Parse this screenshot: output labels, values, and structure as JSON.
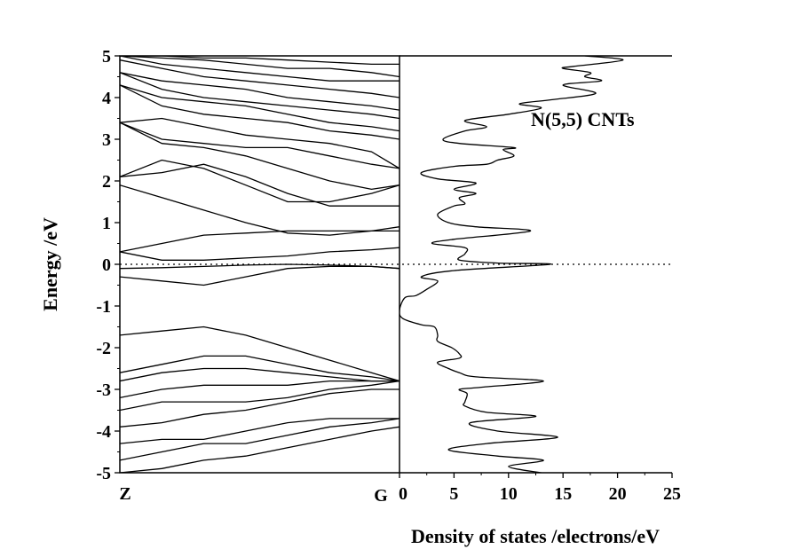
{
  "chart_data": [
    {
      "type": "line",
      "name": "band-structure",
      "ylabel": "Energy /eV",
      "ylim": [
        -5,
        5
      ],
      "y_ticks": [
        "5",
        "4",
        "3",
        "2",
        "1",
        "0",
        "-1",
        "-2",
        "-3",
        "-4",
        "-5"
      ],
      "x_ticks": [
        "Z",
        "G"
      ],
      "fermi_level": 0,
      "k_points": [
        0,
        0.15,
        0.3,
        0.45,
        0.6,
        0.75,
        0.9,
        1.0
      ],
      "bands": [
        [
          -5.0,
          -4.9,
          -4.7,
          -4.6,
          -4.4,
          -4.2,
          -4.0,
          -3.9
        ],
        [
          -4.7,
          -4.5,
          -4.3,
          -4.3,
          -4.1,
          -3.9,
          -3.8,
          -3.7
        ],
        [
          -4.3,
          -4.2,
          -4.2,
          -4.0,
          -3.8,
          -3.7,
          -3.7,
          -3.7
        ],
        [
          -3.9,
          -3.8,
          -3.6,
          -3.5,
          -3.3,
          -3.1,
          -3.0,
          -3.0
        ],
        [
          -3.5,
          -3.3,
          -3.3,
          -3.3,
          -3.2,
          -3.0,
          -2.9,
          -2.8
        ],
        [
          -3.2,
          -3.0,
          -2.9,
          -2.9,
          -2.9,
          -2.8,
          -2.8,
          -2.8
        ],
        [
          -2.8,
          -2.6,
          -2.5,
          -2.5,
          -2.6,
          -2.7,
          -2.8,
          -2.8
        ],
        [
          -2.6,
          -2.4,
          -2.2,
          -2.2,
          -2.4,
          -2.6,
          -2.7,
          -2.8
        ],
        [
          -1.7,
          -1.6,
          -1.5,
          -1.7,
          -2.0,
          -2.3,
          -2.6,
          -2.8
        ],
        [
          -0.3,
          -0.4,
          -0.5,
          -0.3,
          -0.1,
          -0.05,
          -0.05,
          -0.1
        ],
        [
          -0.1,
          -0.08,
          -0.05,
          -0.02,
          0.0,
          -0.02,
          -0.05,
          -0.1
        ],
        [
          0.3,
          0.1,
          0.1,
          0.15,
          0.2,
          0.3,
          0.35,
          0.4
        ],
        [
          0.3,
          0.5,
          0.7,
          0.75,
          0.8,
          0.8,
          0.8,
          0.8
        ],
        [
          1.9,
          1.6,
          1.3,
          1.0,
          0.75,
          0.7,
          0.8,
          0.9
        ],
        [
          2.1,
          2.2,
          2.4,
          2.1,
          1.7,
          1.4,
          1.4,
          1.4
        ],
        [
          2.1,
          2.5,
          2.3,
          1.9,
          1.5,
          1.5,
          1.7,
          1.9
        ],
        [
          3.4,
          2.9,
          2.8,
          2.6,
          2.3,
          2.0,
          1.8,
          1.9
        ],
        [
          3.4,
          3.0,
          2.9,
          2.8,
          2.8,
          2.6,
          2.4,
          2.3
        ],
        [
          3.4,
          3.5,
          3.3,
          3.1,
          3.0,
          2.9,
          2.7,
          2.3
        ],
        [
          4.3,
          3.8,
          3.6,
          3.5,
          3.4,
          3.2,
          3.1,
          3.0
        ],
        [
          4.3,
          4.0,
          3.9,
          3.8,
          3.6,
          3.4,
          3.3,
          3.2
        ],
        [
          4.6,
          4.2,
          4.0,
          3.9,
          3.8,
          3.7,
          3.6,
          3.5
        ],
        [
          4.6,
          4.4,
          4.3,
          4.2,
          4.0,
          3.9,
          3.8,
          3.7
        ],
        [
          4.9,
          4.7,
          4.5,
          4.4,
          4.3,
          4.2,
          4.1,
          4.0
        ],
        [
          5.0,
          4.8,
          4.7,
          4.6,
          4.5,
          4.4,
          4.4,
          4.4
        ],
        [
          5.0,
          4.95,
          4.9,
          4.8,
          4.7,
          4.7,
          4.6,
          4.5
        ],
        [
          5.0,
          5.0,
          4.95,
          4.95,
          4.9,
          4.85,
          4.8,
          4.8
        ]
      ]
    },
    {
      "type": "line",
      "name": "density-of-states",
      "xlabel": "Density of states /electrons/eV",
      "xlim": [
        0,
        25
      ],
      "ylim": [
        -5,
        5
      ],
      "x_ticks": [
        "0",
        "5",
        "10",
        "15",
        "20",
        "25"
      ],
      "series_label": "N(5,5) CNTs",
      "points": [
        [
          13,
          -5.0
        ],
        [
          10,
          -4.85
        ],
        [
          13.2,
          -4.7
        ],
        [
          9,
          -4.6
        ],
        [
          4.5,
          -4.45
        ],
        [
          8,
          -4.3
        ],
        [
          14.5,
          -4.15
        ],
        [
          9,
          -4.0
        ],
        [
          6.5,
          -3.8
        ],
        [
          12.5,
          -3.65
        ],
        [
          8,
          -3.55
        ],
        [
          6,
          -3.4
        ],
        [
          6,
          -3.3
        ],
        [
          6.2,
          -3.1
        ],
        [
          5.5,
          -3.0
        ],
        [
          7.5,
          -2.95
        ],
        [
          13.2,
          -2.8
        ],
        [
          7,
          -2.7
        ],
        [
          5.5,
          -2.6
        ],
        [
          4.5,
          -2.5
        ],
        [
          3.5,
          -2.35
        ],
        [
          5.5,
          -2.25
        ],
        [
          5.5,
          -2.15
        ],
        [
          4.8,
          -2.0
        ],
        [
          3.5,
          -1.85
        ],
        [
          3.5,
          -1.7
        ],
        [
          3.2,
          -1.5
        ],
        [
          2.0,
          -1.45
        ],
        [
          0.3,
          -1.3
        ],
        [
          0.0,
          -1.1
        ],
        [
          0.5,
          -0.8
        ],
        [
          1.5,
          -0.75
        ],
        [
          2.5,
          -0.6
        ],
        [
          3.5,
          -0.4
        ],
        [
          2.0,
          -0.3
        ],
        [
          5.0,
          -0.15
        ],
        [
          13.8,
          0.0
        ],
        [
          9.0,
          0.03
        ],
        [
          5.5,
          0.1
        ],
        [
          6.0,
          0.25
        ],
        [
          6.0,
          0.4
        ],
        [
          3.0,
          0.5
        ],
        [
          5.0,
          0.6
        ],
        [
          12.0,
          0.8
        ],
        [
          7.0,
          0.9
        ],
        [
          4.5,
          1.0
        ],
        [
          3.5,
          1.2
        ],
        [
          5.0,
          1.4
        ],
        [
          6.0,
          1.45
        ],
        [
          5.5,
          1.6
        ],
        [
          7.0,
          1.7
        ],
        [
          5.0,
          1.8
        ],
        [
          7.0,
          1.95
        ],
        [
          3.5,
          2.05
        ],
        [
          2.0,
          2.2
        ],
        [
          5.0,
          2.35
        ],
        [
          8.0,
          2.4
        ],
        [
          9.0,
          2.5
        ],
        [
          10.5,
          2.6
        ],
        [
          9.5,
          2.75
        ],
        [
          10.5,
          2.8
        ],
        [
          5.5,
          2.9
        ],
        [
          4.0,
          3.0
        ],
        [
          6.0,
          3.2
        ],
        [
          8.0,
          3.3
        ],
        [
          6.0,
          3.45
        ],
        [
          10.0,
          3.6
        ],
        [
          13.0,
          3.75
        ],
        [
          11.0,
          3.85
        ],
        [
          14.0,
          3.95
        ],
        [
          18.0,
          4.1
        ],
        [
          15.0,
          4.3
        ],
        [
          18.5,
          4.4
        ],
        [
          17.0,
          4.5
        ],
        [
          17.5,
          4.6
        ],
        [
          15.0,
          4.7
        ],
        [
          16.0,
          4.75
        ],
        [
          20.5,
          4.9
        ],
        [
          17.0,
          5.0
        ]
      ]
    }
  ]
}
